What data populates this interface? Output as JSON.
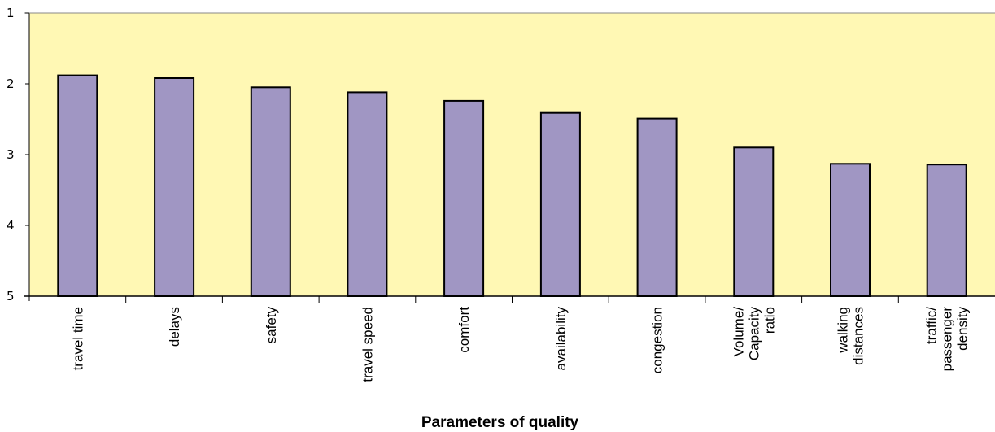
{
  "chart_data": {
    "type": "bar",
    "title": "",
    "xlabel": "Parameters of quality",
    "ylabel": "",
    "y_inverted": true,
    "ylim": [
      1,
      5
    ],
    "yticks": [
      "1",
      "2",
      "3",
      "4",
      "5"
    ],
    "grid": false,
    "legend": "none",
    "categories": [
      "travel time",
      "delays",
      "safety",
      "travel speed",
      "comfort",
      "availability",
      "congestion",
      "Volume/ Capacity ratio",
      "walking distances",
      "traffic/ passenger density"
    ],
    "category_lines": [
      [
        "travel time"
      ],
      [
        "delays"
      ],
      [
        "safety"
      ],
      [
        "travel speed"
      ],
      [
        "comfort"
      ],
      [
        "availability"
      ],
      [
        "congestion"
      ],
      [
        "Volume/",
        "Capacity",
        "ratio"
      ],
      [
        "walking",
        "distances"
      ],
      [
        "traffic/",
        "passenger",
        "density"
      ]
    ],
    "values": [
      1.88,
      1.92,
      2.05,
      2.12,
      2.24,
      2.41,
      2.49,
      2.9,
      3.13,
      3.14
    ],
    "colors": {
      "plot_background": "#fff8b4",
      "bar_fill": "#a096c3",
      "bar_stroke": "#000000",
      "axis": "#000000"
    }
  }
}
